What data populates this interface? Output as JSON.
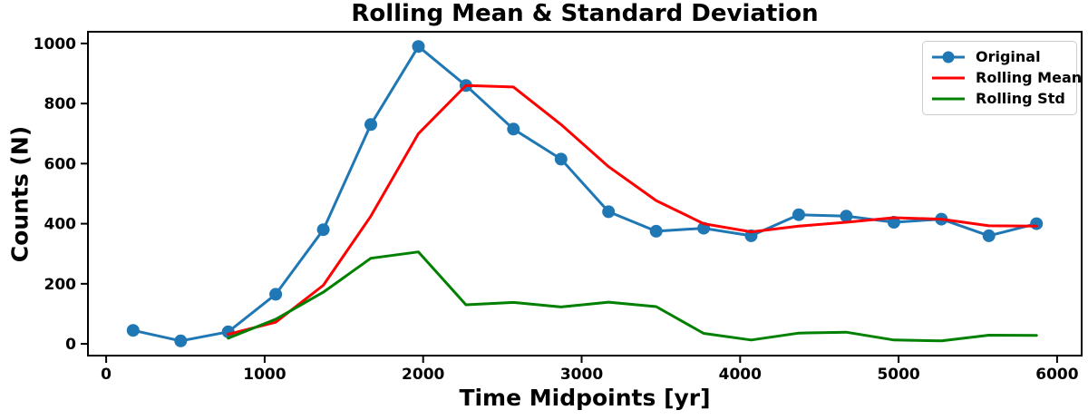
{
  "figure": {
    "title": "Rolling Mean & Standard Deviation",
    "xlabel": "Time Midpoints [yr]",
    "ylabel": "Counts (N)"
  },
  "chart_data": {
    "type": "line",
    "title": "Rolling Mean & Standard Deviation",
    "xlabel": "Time Midpoints [yr]",
    "ylabel": "Counts (N)",
    "xlim": [
      -115,
      6155
    ],
    "ylim": [
      -39,
      1039
    ],
    "x_ticks": [
      0,
      1000,
      2000,
      3000,
      4000,
      5000,
      6000
    ],
    "y_ticks": [
      0,
      200,
      400,
      600,
      800,
      1000
    ],
    "grid": false,
    "legend_position": "upper right",
    "axis_color": "#000000",
    "series": [
      {
        "name": "Original",
        "color": "#1f77b4",
        "marker": "circle",
        "marker_size": 7,
        "x": [
          170,
          470,
          770,
          1070,
          1370,
          1670,
          1970,
          2270,
          2570,
          2870,
          3170,
          3470,
          3770,
          4070,
          4370,
          4670,
          4970,
          5270,
          5570,
          5870
        ],
        "y": [
          45,
          10,
          40,
          165,
          380,
          730,
          990,
          860,
          715,
          615,
          440,
          375,
          385,
          360,
          430,
          425,
          405,
          415,
          360,
          400
        ]
      },
      {
        "name": "Rolling Mean",
        "color": "#ff0000",
        "marker": "none",
        "x": [
          770,
          1070,
          1370,
          1670,
          1970,
          2270,
          2570,
          2870,
          3170,
          3470,
          3770,
          4070,
          4370,
          4670,
          4970,
          5270,
          5570,
          5870
        ],
        "y": [
          32,
          72,
          195,
          425,
          700,
          860,
          855,
          730,
          590,
          477,
          400,
          373,
          392,
          405,
          420,
          415,
          393,
          392
        ]
      },
      {
        "name": "Rolling Std",
        "color": "#008000",
        "marker": "none",
        "x": [
          770,
          1070,
          1370,
          1670,
          1970,
          2270,
          2570,
          2870,
          3170,
          3470,
          3770,
          4070,
          4370,
          4670,
          4970,
          5270,
          5570,
          5870
        ],
        "y": [
          19,
          82,
          172,
          285,
          306,
          130,
          138,
          123,
          139,
          124,
          35,
          13,
          36,
          39,
          13,
          10,
          29,
          28
        ]
      }
    ]
  }
}
